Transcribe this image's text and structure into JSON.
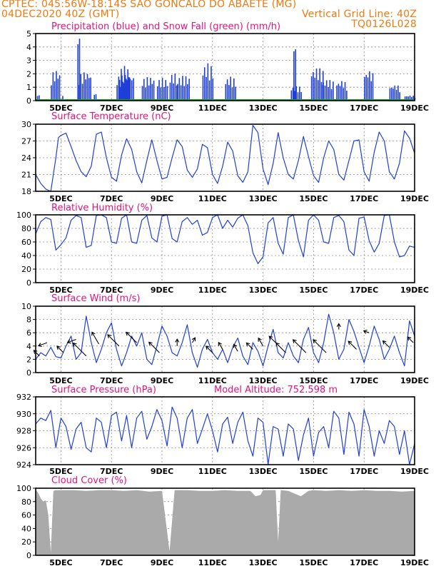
{
  "header": {
    "line1": "CPTEC:  045:56W-18:14S  SAO GONCALO DO ABAETE (MG)",
    "line2_left": "04DEC2020 40Z (GMT)",
    "line2_right": "Vertical Grid Line: 40Z",
    "line3_right": "TQ0126L028"
  },
  "colors": {
    "header": "#ee7a10",
    "title": "#e0147c",
    "line": "#1f3fd8",
    "rain": "#1f3fd8",
    "snow": "#1aa01a",
    "cloud": "#aaaaaa",
    "wind_arrow": "#000000"
  },
  "date_labels": [
    "5DEC",
    "7DEC",
    "9DEC",
    "11DEC",
    "13DEC",
    "15DEC",
    "17DEC",
    "19DEC"
  ],
  "chart_data": [
    {
      "type": "bar",
      "id": "precip",
      "title": "Precipitation (blue) and Snow Fall (green) (mm/h)",
      "ylim": [
        0,
        5
      ],
      "yticks": [
        0,
        1,
        2,
        3,
        4,
        5
      ],
      "xlim_days": [
        4.0,
        19.0
      ],
      "series": [
        {
          "name": "Precipitation",
          "color": "#1f3fd8",
          "events": [
            {
              "t": 4.05,
              "w": 0.12,
              "v": 0.4
            },
            {
              "t": 4.6,
              "w": 0.35,
              "v": 2.3
            },
            {
              "t": 5.05,
              "w": 0.05,
              "v": 0.4
            },
            {
              "t": 5.7,
              "w": 0.5,
              "v": 2.2
            },
            {
              "t": 5.65,
              "w": 0.1,
              "v": 4.8
            },
            {
              "t": 6.3,
              "w": 0.1,
              "v": 0.5
            },
            {
              "t": 7.2,
              "w": 0.7,
              "v": 2.0
            },
            {
              "t": 7.3,
              "w": 0.4,
              "v": 2.6
            },
            {
              "t": 8.2,
              "w": 0.5,
              "v": 1.8
            },
            {
              "t": 8.8,
              "w": 0.4,
              "v": 1.7
            },
            {
              "t": 9.3,
              "w": 0.3,
              "v": 2.1
            },
            {
              "t": 9.6,
              "w": 0.5,
              "v": 1.9
            },
            {
              "t": 10.6,
              "w": 0.4,
              "v": 2.8
            },
            {
              "t": 11.5,
              "w": 0.4,
              "v": 1.8
            },
            {
              "t": 14.1,
              "w": 0.45,
              "v": 1.1
            },
            {
              "t": 14.2,
              "w": 0.1,
              "v": 4.2
            },
            {
              "t": 14.9,
              "w": 0.5,
              "v": 2.5
            },
            {
              "t": 15.3,
              "w": 0.5,
              "v": 1.6
            },
            {
              "t": 15.9,
              "w": 0.4,
              "v": 1.5
            },
            {
              "t": 17.0,
              "w": 0.35,
              "v": 2.3
            },
            {
              "t": 18.0,
              "w": 0.45,
              "v": 1.2
            },
            {
              "t": 18.6,
              "w": 0.4,
              "v": 0.4
            }
          ]
        },
        {
          "name": "Snow Fall",
          "color": "#1aa01a",
          "values": [
            0
          ]
        }
      ]
    },
    {
      "type": "line",
      "id": "temp",
      "title": "Surface Temperature (nC)",
      "ylim": [
        18,
        30
      ],
      "yticks": [
        18,
        21,
        24,
        27,
        30
      ],
      "x_days": [
        4.0,
        4.2,
        4.4,
        4.6,
        4.8,
        4.9,
        5.0,
        5.2,
        5.4,
        5.6,
        5.8,
        6.0,
        6.2,
        6.4,
        6.6,
        6.8,
        7.0,
        7.2,
        7.4,
        7.6,
        7.8,
        8.0,
        8.2,
        8.4,
        8.6,
        8.8,
        9.0,
        9.2,
        9.4,
        9.6,
        9.8,
        10.0,
        10.2,
        10.4,
        10.6,
        10.8,
        11.0,
        11.2,
        11.4,
        11.6,
        11.8,
        12.0,
        12.2,
        12.4,
        12.6,
        12.8,
        13.0,
        13.2,
        13.4,
        13.6,
        13.8,
        14.0,
        14.2,
        14.4,
        14.6,
        14.8,
        15.0,
        15.2,
        15.4,
        15.6,
        15.8,
        16.0,
        16.2,
        16.4,
        16.6,
        16.8,
        17.0,
        17.2,
        17.4,
        17.6,
        17.8,
        18.0,
        18.2,
        18.4,
        18.6,
        18.8,
        19.0
      ],
      "values": [
        21.0,
        19.4,
        18.4,
        18.0,
        24.0,
        27.6,
        28.0,
        28.4,
        26.0,
        23.5,
        21.5,
        20.6,
        22.5,
        28.2,
        28.6,
        24.0,
        20.5,
        19.8,
        24.5,
        27.4,
        25.5,
        21.5,
        19.5,
        23.5,
        27.2,
        23.5,
        20.2,
        20.5,
        24.0,
        27.2,
        26.0,
        21.8,
        20.5,
        22.0,
        26.4,
        25.8,
        21.0,
        19.4,
        22.5,
        26.8,
        25.2,
        20.8,
        19.6,
        21.5,
        29.8,
        28.5,
        22.0,
        19.2,
        23.0,
        28.5,
        24.0,
        21.0,
        20.2,
        23.5,
        27.8,
        24.2,
        20.8,
        19.6,
        24.0,
        27.0,
        25.5,
        21.0,
        20.0,
        23.5,
        27.0,
        27.2,
        21.5,
        19.8,
        25.0,
        28.6,
        27.0,
        21.5,
        20.2,
        23.0,
        28.8,
        27.5,
        24.8
      ]
    },
    {
      "type": "line",
      "id": "rh",
      "title": "Relative Humidity (%)",
      "ylim": [
        0,
        100
      ],
      "yticks": [
        0,
        20,
        40,
        60,
        80,
        100
      ],
      "x_days": [
        4.0,
        4.2,
        4.4,
        4.6,
        4.8,
        5.0,
        5.2,
        5.4,
        5.6,
        5.8,
        6.0,
        6.2,
        6.4,
        6.6,
        6.8,
        7.0,
        7.2,
        7.4,
        7.6,
        7.8,
        8.0,
        8.2,
        8.4,
        8.6,
        8.8,
        9.0,
        9.2,
        9.4,
        9.6,
        9.8,
        10.0,
        10.2,
        10.4,
        10.6,
        10.8,
        11.0,
        11.2,
        11.4,
        11.6,
        11.8,
        12.0,
        12.2,
        12.4,
        12.6,
        12.8,
        13.0,
        13.2,
        13.4,
        13.6,
        13.8,
        14.0,
        14.2,
        14.4,
        14.6,
        14.8,
        15.0,
        15.2,
        15.4,
        15.6,
        15.8,
        16.0,
        16.2,
        16.4,
        16.6,
        16.8,
        17.0,
        17.2,
        17.4,
        17.6,
        17.8,
        18.0,
        18.2,
        18.4,
        18.6,
        18.8,
        19.0
      ],
      "values": [
        72,
        90,
        96,
        93,
        48,
        56,
        66,
        92,
        99,
        96,
        52,
        55,
        99,
        100,
        96,
        60,
        58,
        95,
        100,
        60,
        58,
        92,
        99,
        66,
        60,
        98,
        100,
        65,
        60,
        90,
        96,
        86,
        92,
        70,
        74,
        96,
        100,
        80,
        92,
        82,
        95,
        100,
        84,
        44,
        28,
        38,
        88,
        96,
        58,
        42,
        96,
        100,
        62,
        38,
        92,
        100,
        92,
        60,
        58,
        96,
        99,
        90,
        48,
        40,
        95,
        97,
        62,
        45,
        58,
        99,
        100,
        60,
        38,
        40,
        54,
        52
      ]
    },
    {
      "type": "line",
      "id": "wind",
      "title": "Surface Wind (m/s)",
      "ylim": [
        0,
        10
      ],
      "yticks": [
        0,
        2,
        4,
        6,
        8,
        10
      ],
      "x_days": [
        4.0,
        4.2,
        4.4,
        4.6,
        4.8,
        5.0,
        5.2,
        5.4,
        5.6,
        5.8,
        6.0,
        6.2,
        6.4,
        6.6,
        6.8,
        7.0,
        7.2,
        7.4,
        7.6,
        7.8,
        8.0,
        8.2,
        8.4,
        8.6,
        8.8,
        9.0,
        9.2,
        9.4,
        9.6,
        9.8,
        10.0,
        10.2,
        10.4,
        10.6,
        10.8,
        11.0,
        11.2,
        11.4,
        11.6,
        11.8,
        12.0,
        12.2,
        12.4,
        12.6,
        12.8,
        13.0,
        13.2,
        13.4,
        13.6,
        13.8,
        14.0,
        14.2,
        14.4,
        14.6,
        14.8,
        15.0,
        15.2,
        15.4,
        15.6,
        15.8,
        16.0,
        16.2,
        16.4,
        16.6,
        16.8,
        17.0,
        17.2,
        17.4,
        17.6,
        17.8,
        18.0,
        18.2,
        18.4,
        18.6,
        18.8,
        19.0
      ],
      "values": [
        2.0,
        3.0,
        2.5,
        3.8,
        2.4,
        2.2,
        4.0,
        5.5,
        2.0,
        3.0,
        8.5,
        4.5,
        1.5,
        3.5,
        6.0,
        7.5,
        3.5,
        1.0,
        3.0,
        5.5,
        4.0,
        6.0,
        2.0,
        1.2,
        4.0,
        7.0,
        5.5,
        3.0,
        2.5,
        4.5,
        7.2,
        3.0,
        0.8,
        3.5,
        5.0,
        3.0,
        2.0,
        3.5,
        1.5,
        3.8,
        5.2,
        2.5,
        1.2,
        4.5,
        3.2,
        1.0,
        4.0,
        6.5,
        3.0,
        2.2,
        4.5,
        2.5,
        1.5,
        5.0,
        6.8,
        3.0,
        1.5,
        4.5,
        8.8,
        6.0,
        2.0,
        3.5,
        8.0,
        6.2,
        3.8,
        1.5,
        4.0,
        7.0,
        5.0,
        2.0,
        3.5,
        5.5,
        3.0,
        1.0,
        7.8,
        5.5
      ],
      "wind_arrows": [
        {
          "t": 4.15,
          "v": 2.5,
          "dir_deg": 225,
          "len": 0.7
        },
        {
          "t": 4.45,
          "v": 4.5,
          "dir_deg": 160,
          "len": 0.8
        },
        {
          "t": 5.1,
          "v": 3.0,
          "dir_deg": 225,
          "len": 0.8
        },
        {
          "t": 5.6,
          "v": 5.0,
          "dir_deg": 160,
          "len": 0.8
        },
        {
          "t": 6.0,
          "v": 2.5,
          "dir_deg": 225,
          "len": 1.6
        },
        {
          "t": 6.5,
          "v": 4.3,
          "dir_deg": 240,
          "len": 1.2
        },
        {
          "t": 7.3,
          "v": 4.0,
          "dir_deg": 225,
          "len": 1.4
        },
        {
          "t": 8.0,
          "v": 4.5,
          "dir_deg": 225,
          "len": 1.3
        },
        {
          "t": 8.9,
          "v": 3.0,
          "dir_deg": 225,
          "len": 1.3
        },
        {
          "t": 9.6,
          "v": 4.0,
          "dir_deg": 270,
          "len": 0.6
        },
        {
          "t": 10.2,
          "v": 4.5,
          "dir_deg": 300,
          "len": 0.5
        },
        {
          "t": 11.0,
          "v": 3.0,
          "dir_deg": 225,
          "len": 0.8
        },
        {
          "t": 11.4,
          "v": 3.5,
          "dir_deg": 240,
          "len": 0.7
        },
        {
          "t": 12.0,
          "v": 3.2,
          "dir_deg": 240,
          "len": 0.7
        },
        {
          "t": 12.6,
          "v": 3.5,
          "dir_deg": 225,
          "len": 0.8
        },
        {
          "t": 13.0,
          "v": 4.0,
          "dir_deg": 240,
          "len": 0.8
        },
        {
          "t": 13.5,
          "v": 4.5,
          "dir_deg": 225,
          "len": 0.8
        },
        {
          "t": 13.9,
          "v": 3.0,
          "dir_deg": 225,
          "len": 1.2
        },
        {
          "t": 14.7,
          "v": 3.0,
          "dir_deg": 225,
          "len": 1.6
        },
        {
          "t": 15.5,
          "v": 3.0,
          "dir_deg": 225,
          "len": 1.6
        },
        {
          "t": 16.0,
          "v": 6.5,
          "dir_deg": 270,
          "len": 0.5
        },
        {
          "t": 16.7,
          "v": 3.5,
          "dir_deg": 225,
          "len": 1.0
        },
        {
          "t": 17.2,
          "v": 6.0,
          "dir_deg": 200,
          "len": 0.5
        },
        {
          "t": 18.0,
          "v": 3.8,
          "dir_deg": 225,
          "len": 0.8
        },
        {
          "t": 18.95,
          "v": 4.5,
          "dir_deg": 225,
          "len": 0.7
        }
      ]
    },
    {
      "type": "line",
      "id": "pres",
      "title": "Surface Pressure (hPa)",
      "annotation": "Model Altitude: 752.598 m",
      "ylim": [
        924,
        932
      ],
      "yticks": [
        924,
        926,
        928,
        930,
        932
      ],
      "x_days": [
        4.0,
        4.2,
        4.4,
        4.6,
        4.8,
        5.0,
        5.2,
        5.4,
        5.6,
        5.8,
        6.0,
        6.2,
        6.4,
        6.6,
        6.8,
        7.0,
        7.2,
        7.4,
        7.6,
        7.8,
        8.0,
        8.2,
        8.4,
        8.6,
        8.8,
        9.0,
        9.2,
        9.4,
        9.6,
        9.8,
        10.0,
        10.2,
        10.4,
        10.6,
        10.8,
        11.0,
        11.2,
        11.4,
        11.6,
        11.8,
        12.0,
        12.2,
        12.4,
        12.6,
        12.8,
        13.0,
        13.2,
        13.4,
        13.6,
        13.8,
        14.0,
        14.2,
        14.4,
        14.6,
        14.8,
        15.0,
        15.2,
        15.4,
        15.6,
        15.8,
        16.0,
        16.2,
        16.4,
        16.6,
        16.8,
        17.0,
        17.2,
        17.4,
        17.6,
        17.8,
        18.0,
        18.2,
        18.4,
        18.6,
        18.8,
        19.0
      ],
      "values": [
        928.8,
        929.5,
        929.2,
        930.4,
        926.0,
        929.5,
        928.5,
        925.8,
        928.2,
        929.0,
        926.0,
        925.5,
        929.5,
        929.0,
        926.0,
        929.8,
        930.2,
        926.8,
        929.8,
        926.0,
        929.5,
        930.3,
        927.0,
        928.5,
        930.5,
        929.2,
        926.2,
        930.8,
        929.5,
        926.0,
        929.5,
        930.5,
        926.5,
        928.2,
        930.0,
        928.0,
        925.5,
        928.8,
        929.6,
        926.5,
        929.0,
        930.2,
        926.8,
        925.0,
        929.5,
        929.0,
        924.0,
        928.5,
        928.2,
        925.0,
        928.8,
        928.2,
        924.5,
        927.5,
        929.5,
        925.0,
        927.8,
        928.5,
        926.0,
        930.3,
        929.5,
        925.2,
        930.2,
        928.8,
        925.0,
        930.5,
        928.5,
        925.0,
        928.0,
        926.5,
        929.2,
        928.5,
        925.2,
        928.0,
        924.0,
        926.5
      ]
    },
    {
      "type": "area",
      "id": "cloud",
      "title": "Cloud Cover (%)",
      "ylim": [
        0,
        100
      ],
      "yticks": [
        0,
        20,
        40,
        60,
        80,
        100
      ],
      "x_days": [
        4.0,
        4.1,
        4.2,
        4.3,
        4.4,
        4.5,
        4.6,
        4.7,
        4.8,
        5.0,
        5.5,
        6.0,
        6.5,
        7.0,
        7.5,
        8.0,
        8.5,
        9.0,
        9.3,
        9.5,
        10.0,
        10.5,
        11.0,
        11.5,
        12.0,
        12.5,
        12.7,
        12.9,
        13.0,
        13.5,
        13.6,
        13.7,
        14.0,
        14.5,
        14.8,
        15.0,
        15.5,
        16.0,
        16.5,
        17.0,
        17.5,
        18.0,
        18.5,
        19.0
      ],
      "values": [
        98,
        93,
        85,
        80,
        82,
        60,
        4,
        96,
        97,
        97,
        97,
        96,
        97,
        97,
        96,
        97,
        95,
        96,
        6,
        97,
        97,
        96,
        96,
        97,
        96,
        96,
        88,
        90,
        97,
        97,
        20,
        97,
        96,
        88,
        96,
        97,
        96,
        97,
        96,
        97,
        96,
        96,
        95,
        96
      ]
    }
  ]
}
